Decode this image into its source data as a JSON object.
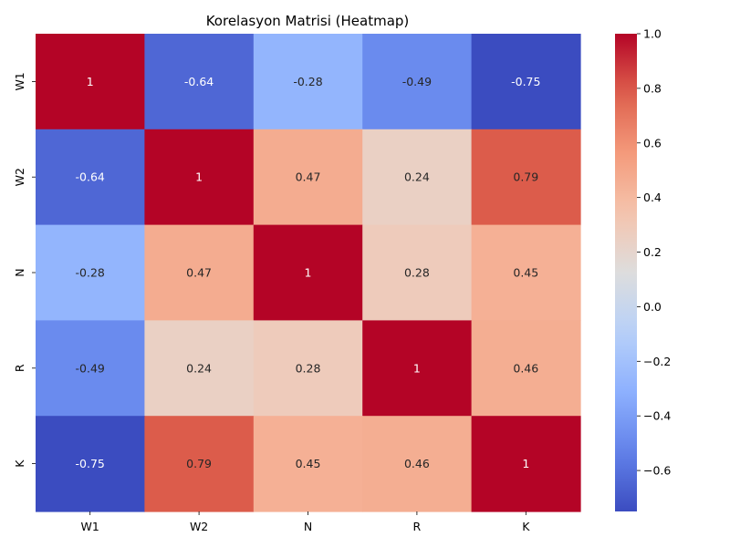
{
  "chart_data": {
    "type": "heatmap",
    "title": "Korelasyon Matrisi (Heatmap)",
    "x_labels": [
      "W1",
      "W2",
      "N",
      "R",
      "K"
    ],
    "y_labels": [
      "W1",
      "W2",
      "N",
      "R",
      "K"
    ],
    "values": [
      [
        1,
        -0.64,
        -0.28,
        -0.49,
        -0.75
      ],
      [
        -0.64,
        1,
        0.47,
        0.24,
        0.79
      ],
      [
        -0.28,
        0.47,
        1,
        0.28,
        0.45
      ],
      [
        -0.49,
        0.24,
        0.28,
        1,
        0.46
      ],
      [
        -0.75,
        0.79,
        0.45,
        0.46,
        1
      ]
    ],
    "cell_labels": [
      [
        "1",
        "-0.64",
        "-0.28",
        "-0.49",
        "-0.75"
      ],
      [
        "-0.64",
        "1",
        "0.47",
        "0.24",
        "0.79"
      ],
      [
        "-0.28",
        "0.47",
        "1",
        "0.28",
        "0.45"
      ],
      [
        "-0.49",
        "0.24",
        "0.28",
        "1",
        "0.46"
      ],
      [
        "-0.75",
        "0.79",
        "0.45",
        "0.46",
        "1"
      ]
    ],
    "colormap": "coolwarm",
    "vmin": -0.75,
    "vmax": 1.0,
    "colorbar_ticks": [
      "1.0",
      "0.8",
      "0.6",
      "0.4",
      "0.2",
      "0.0",
      "−0.2",
      "−0.4",
      "−0.6"
    ],
    "colorbar_tick_values": [
      1.0,
      0.8,
      0.6,
      0.4,
      0.2,
      0.0,
      -0.2,
      -0.4,
      -0.6
    ],
    "colorbar_position": "right",
    "grid": false
  }
}
